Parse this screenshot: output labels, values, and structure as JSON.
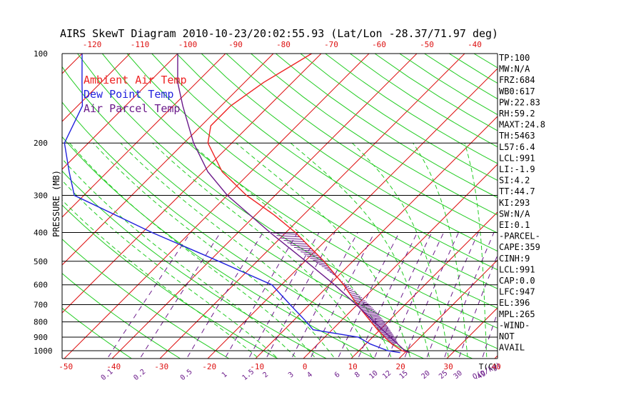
{
  "chart_data": {
    "type": "line",
    "title": "AIRS SkewT Diagram 2010-10-23/20:02:55.93 (Lat/Lon -28.37/71.97 deg)",
    "ylabel": "PRESSURE (MB)",
    "xlabel_bottom_unit": "T(C)",
    "mixing_ratio_unit": "Q(g/kg)",
    "y_scale": "log",
    "ylim": [
      1050,
      100
    ],
    "xlim_bottom": [
      -52,
      42
    ],
    "pressure_ticks": [
      100,
      200,
      300,
      400,
      500,
      600,
      700,
      800,
      900,
      1000
    ],
    "bottom_temp_ticks": [
      "-50",
      "-40",
      "-30",
      "-20",
      "-10",
      "0",
      "10",
      "20",
      "30",
      "40"
    ],
    "top_temp_ticks": [
      "-120",
      "-110",
      "-100",
      "-90",
      "-80",
      "-70",
      "-60",
      "-50",
      "-40"
    ],
    "mixing_ratio_labels": [
      "0.1",
      "0.2",
      "0.5",
      "1",
      "1.5",
      "2",
      "3",
      "4",
      "6",
      "8",
      "10",
      "12",
      "15",
      "20",
      "25",
      "30",
      "40"
    ],
    "legend": [
      {
        "label": "Ambient Air Temp",
        "color": "#ee2222"
      },
      {
        "label": "Dew Point Temp",
        "color": "#2222dd"
      },
      {
        "label": "Air Parcel Temp",
        "color": "#6b1a8a"
      }
    ],
    "series": [
      {
        "name": "Ambient Air Temp",
        "p": [
          1015,
          1000,
          950,
          900,
          850,
          800,
          700,
          600,
          500,
          400,
          350,
          300,
          250,
          200,
          175,
          150,
          125,
          100
        ],
        "t": [
          21,
          19,
          15.5,
          12.5,
          9.5,
          6.5,
          0,
          -7,
          -16,
          -28,
          -36,
          -46,
          -56,
          -65,
          -68,
          -68,
          -66,
          -62
        ]
      },
      {
        "name": "Dew Point Temp",
        "p": [
          1015,
          1000,
          950,
          900,
          850,
          800,
          700,
          600,
          500,
          400,
          300,
          250,
          200,
          150,
          125,
          100
        ],
        "t": [
          19,
          16,
          11,
          7,
          -4,
          -7,
          -14,
          -22,
          -38,
          -58,
          -82,
          -88,
          -95,
          -99,
          -104,
          -110
        ]
      },
      {
        "name": "Air Parcel Temp",
        "p": [
          1015,
          1000,
          950,
          900,
          850,
          800,
          700,
          600,
          500,
          400,
          300,
          250,
          200,
          150,
          125,
          100
        ],
        "t": [
          21,
          19.6,
          16.7,
          13.7,
          10.5,
          7.2,
          -0.2,
          -8.9,
          -19.8,
          -33.3,
          -50,
          -59,
          -68,
          -78,
          -84,
          -90
        ]
      }
    ]
  },
  "side_panel": [
    "TP:100",
    "MW:N/A",
    "FRZ:684",
    "WB0:617",
    "PW:22.83",
    "RH:59.2",
    "MAXT:24.8",
    "TH:5463",
    "L57:6.4",
    "LCL:991",
    "LI:-1.9",
    "SI:4.2",
    "TT:44.7",
    "KI:293",
    "SW:N/A",
    "EI:0.1",
    "-PARCEL-",
    "CAPE:359",
    "CINH:9",
    "LCL:991",
    "CAP:0.0",
    "LFC:947",
    "EL:396",
    "MPL:265",
    "-WIND-",
    "NOT",
    "AVAIL"
  ],
  "colors": {
    "isotherm": "#dd1111",
    "dry_adiabat": "#22cc22",
    "moist_adiabat": "#22cc22",
    "mixing_ratio": "#6b1a8a",
    "ambient": "#ee2222",
    "dewpoint": "#2222dd",
    "parcel": "#6b1a8a",
    "axis_text": "#000000",
    "top_tick_text": "#dd1111",
    "bottom_tick_text": "#dd1111",
    "mr_text": "#6b1a8a"
  }
}
